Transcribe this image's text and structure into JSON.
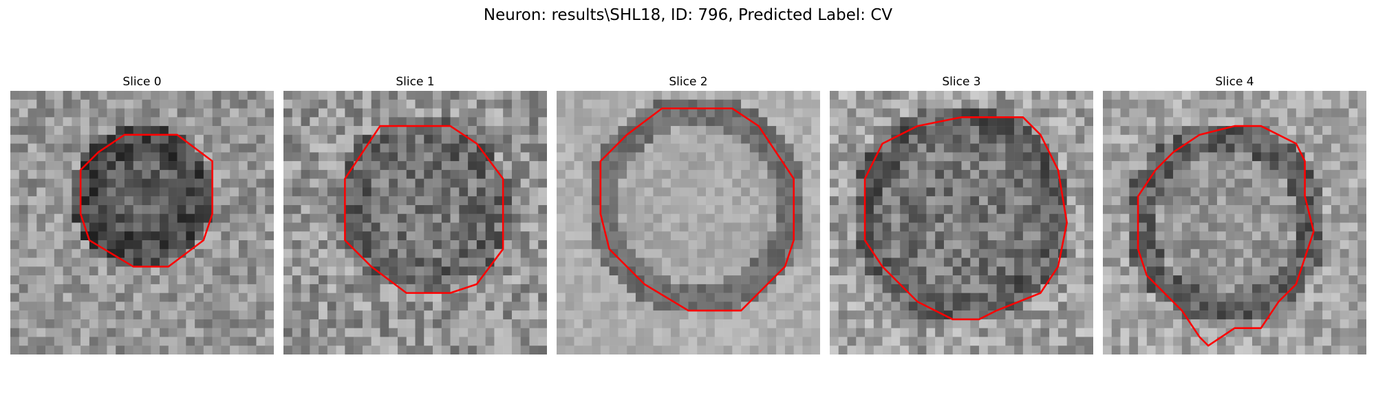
{
  "figure": {
    "title": "Neuron: results\\SHL18, ID: 796, Predicted Label: CV"
  },
  "colors": {
    "contour": "#ff0000",
    "colormap": "gray"
  },
  "slices": [
    {
      "title": "Slice 0"
    },
    {
      "title": "Slice 1"
    },
    {
      "title": "Slice 2"
    },
    {
      "title": "Slice 3"
    },
    {
      "title": "Slice 4"
    }
  ]
}
